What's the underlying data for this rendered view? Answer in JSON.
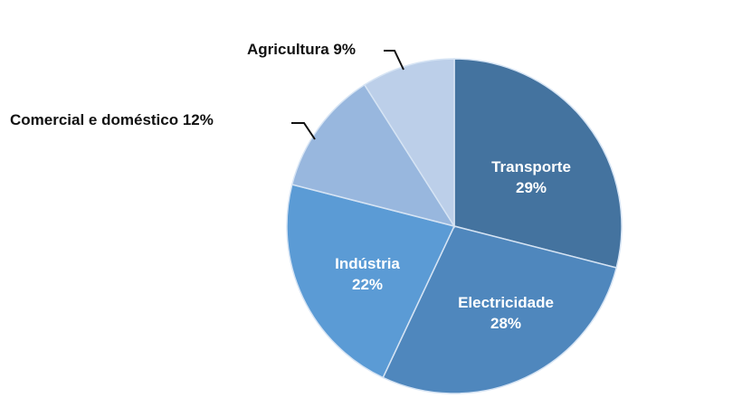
{
  "chart_data": {
    "type": "pie",
    "title": "",
    "categories": [
      "Transporte",
      "Electricidade",
      "Indústria",
      "Comercial e doméstico",
      "Agricultura"
    ],
    "values": [
      29,
      28,
      22,
      12,
      9
    ],
    "unit": "%",
    "colors": [
      "#44739f",
      "#4f87bd",
      "#5b9bd5",
      "#98b7de",
      "#bccfe9"
    ],
    "start_angle_deg": 0,
    "direction": "clockwise",
    "labels": [
      {
        "name": "Transporte",
        "pct": "29%",
        "position": "inside"
      },
      {
        "name": "Electricidade",
        "pct": "28%",
        "position": "inside"
      },
      {
        "name": "Indústria",
        "pct": "22%",
        "position": "inside"
      },
      {
        "name": "Comercial e doméstico",
        "pct": "12%",
        "position": "outside",
        "text": "Comercial e doméstico 12%"
      },
      {
        "name": "Agricultura",
        "pct": "9%",
        "position": "outside",
        "text": "Agricultura 9%"
      }
    ],
    "legend": null
  }
}
